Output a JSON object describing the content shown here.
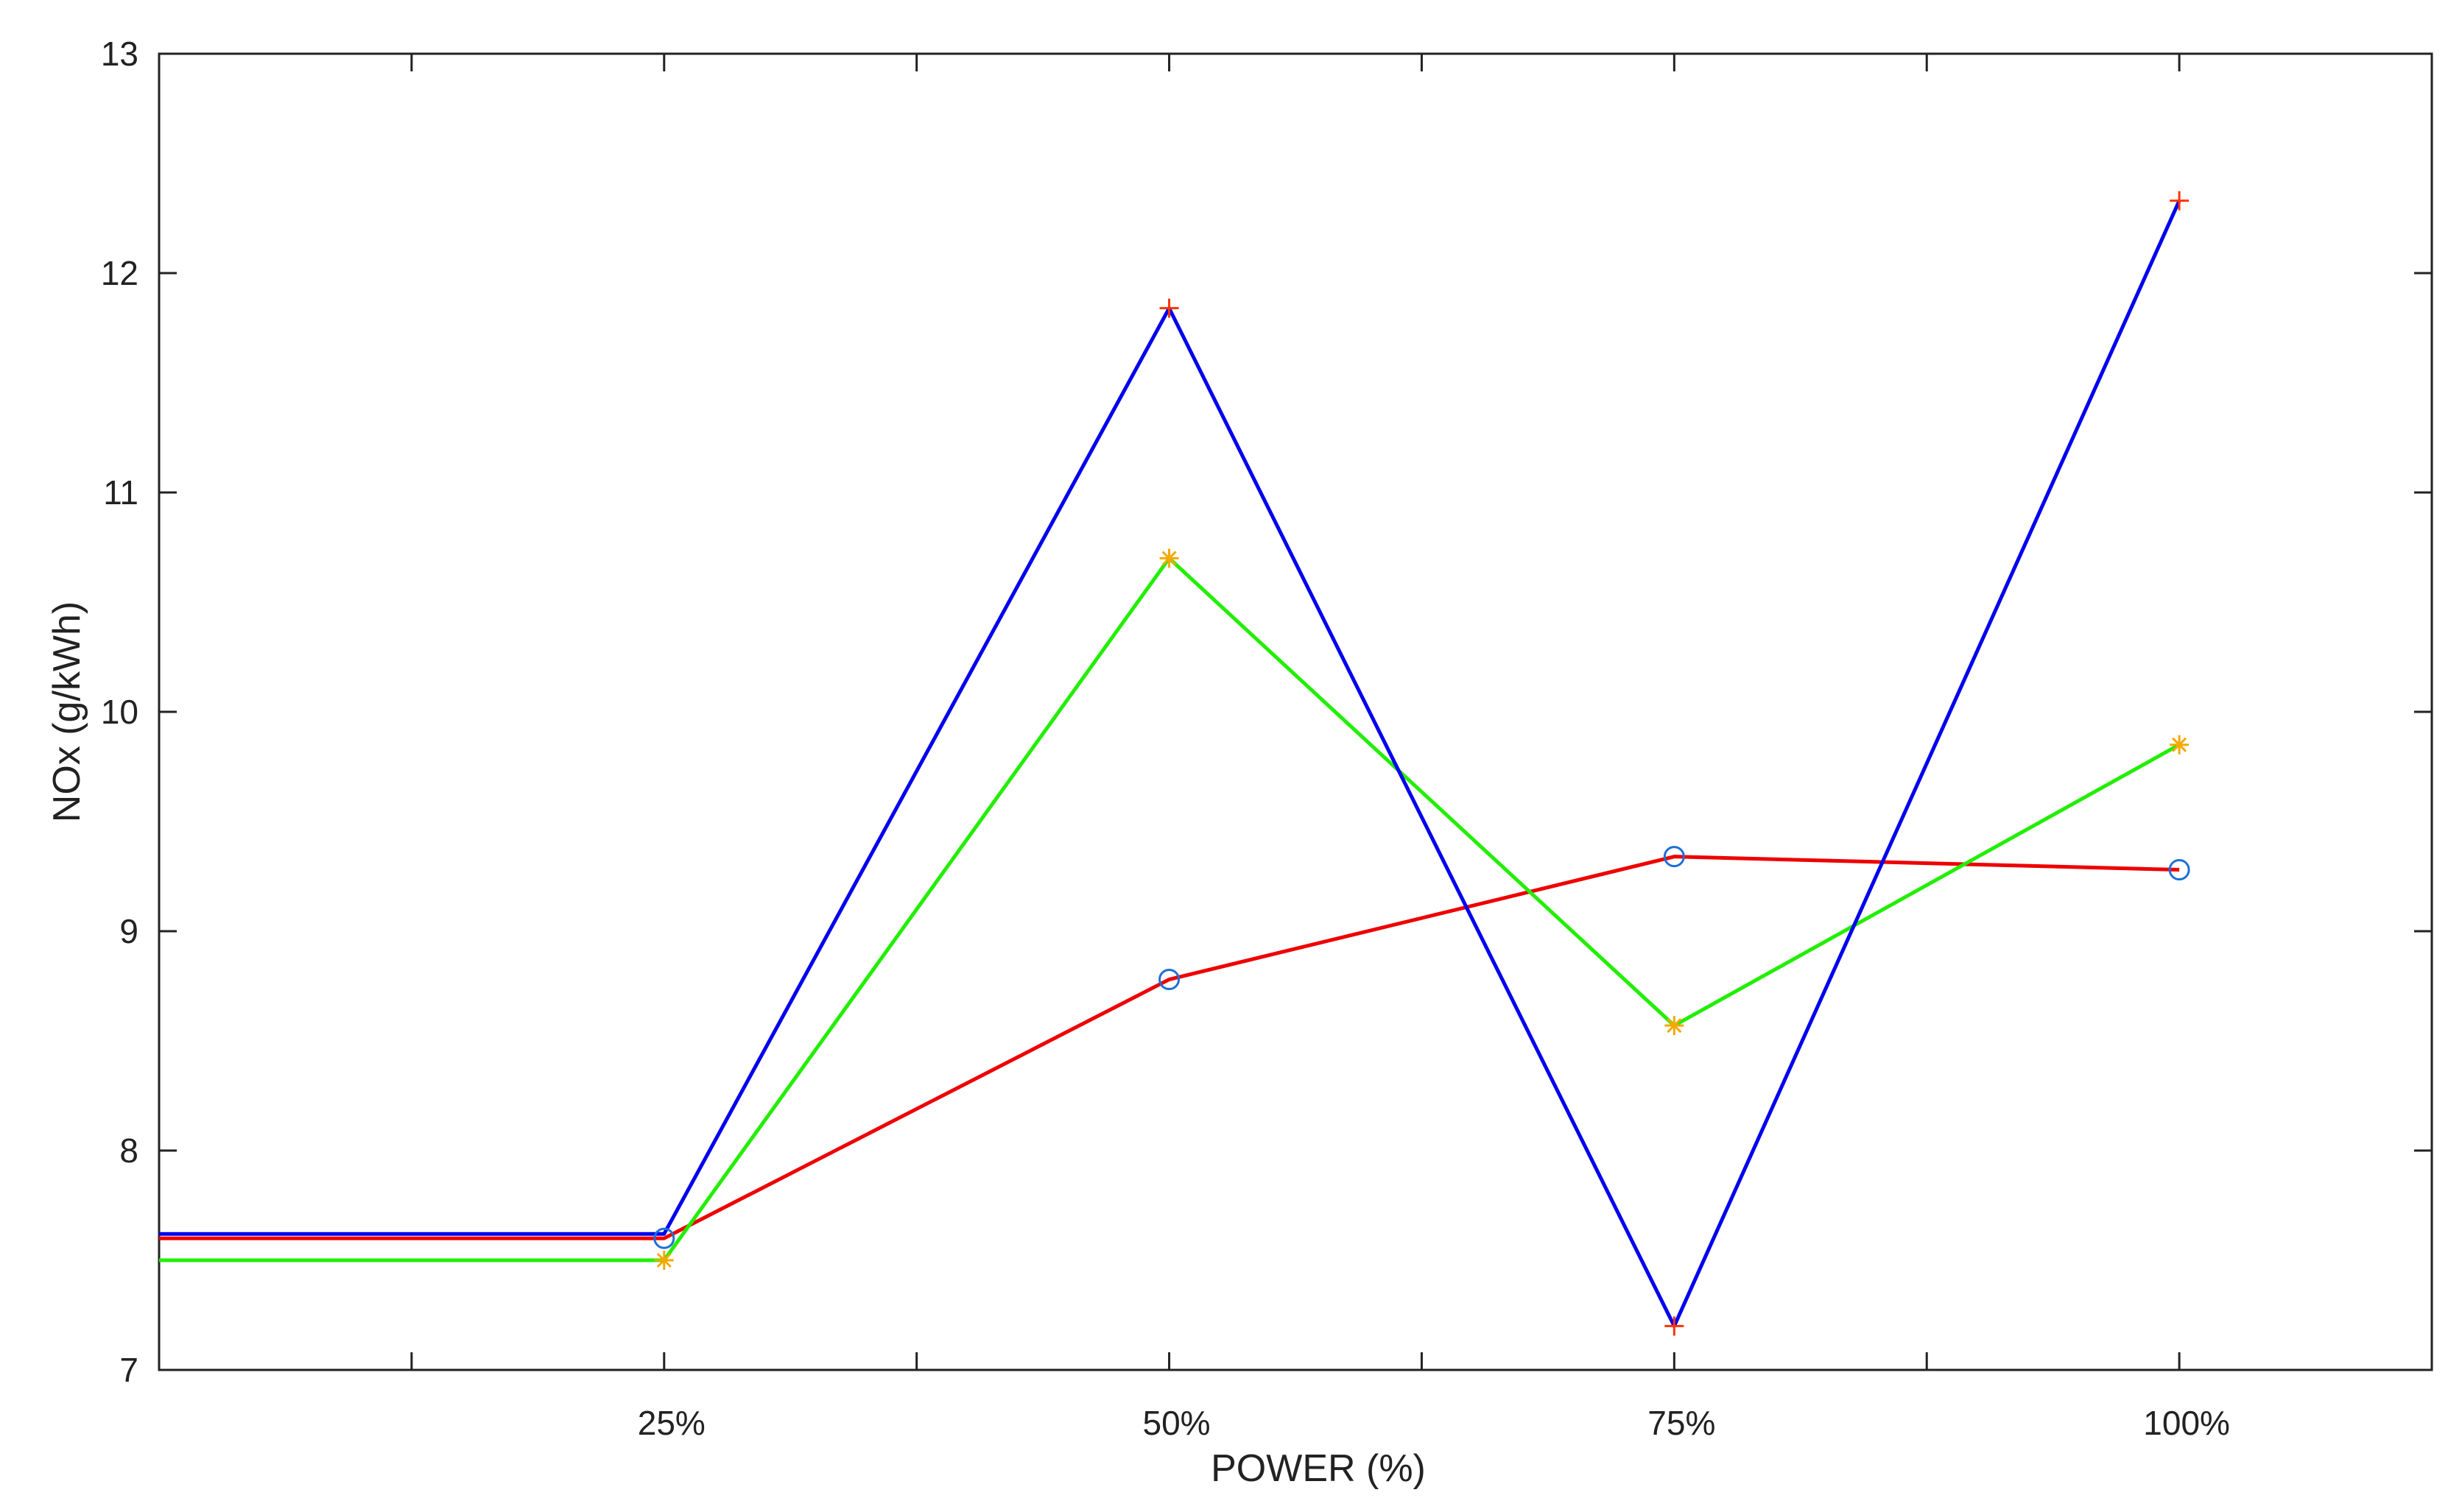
{
  "chart_data": {
    "type": "line",
    "title": "",
    "xlabel": "POWER (%)",
    "ylabel": "NOx (g/kWh)",
    "x_categories": [
      "",
      "25%",
      "50%",
      "75%",
      "100%"
    ],
    "ylim": [
      7,
      13
    ],
    "yticks": [
      "7",
      "8",
      "9",
      "10",
      "11",
      "12",
      "13"
    ],
    "grid": false,
    "series": [
      {
        "color": "#0000ee",
        "values": [
          7.62,
          7.62,
          11.84,
          7.2,
          12.33
        ],
        "markers": [
          null,
          null,
          "plus",
          "plus",
          "plus"
        ]
      },
      {
        "color": "#22ee00",
        "values": [
          7.5,
          7.5,
          10.7,
          8.57,
          9.85
        ],
        "markers": [
          null,
          "star",
          "star",
          "star",
          "star"
        ]
      },
      {
        "color": "#ee0000",
        "values": [
          7.6,
          7.6,
          8.78,
          9.34,
          9.28
        ],
        "markers": [
          null,
          "circle",
          "circle",
          "circle",
          "circle"
        ]
      }
    ],
    "marker_colors": {
      "plus": "#ff3300",
      "star": "#f5a800",
      "circle": "#1f6fd6"
    }
  }
}
